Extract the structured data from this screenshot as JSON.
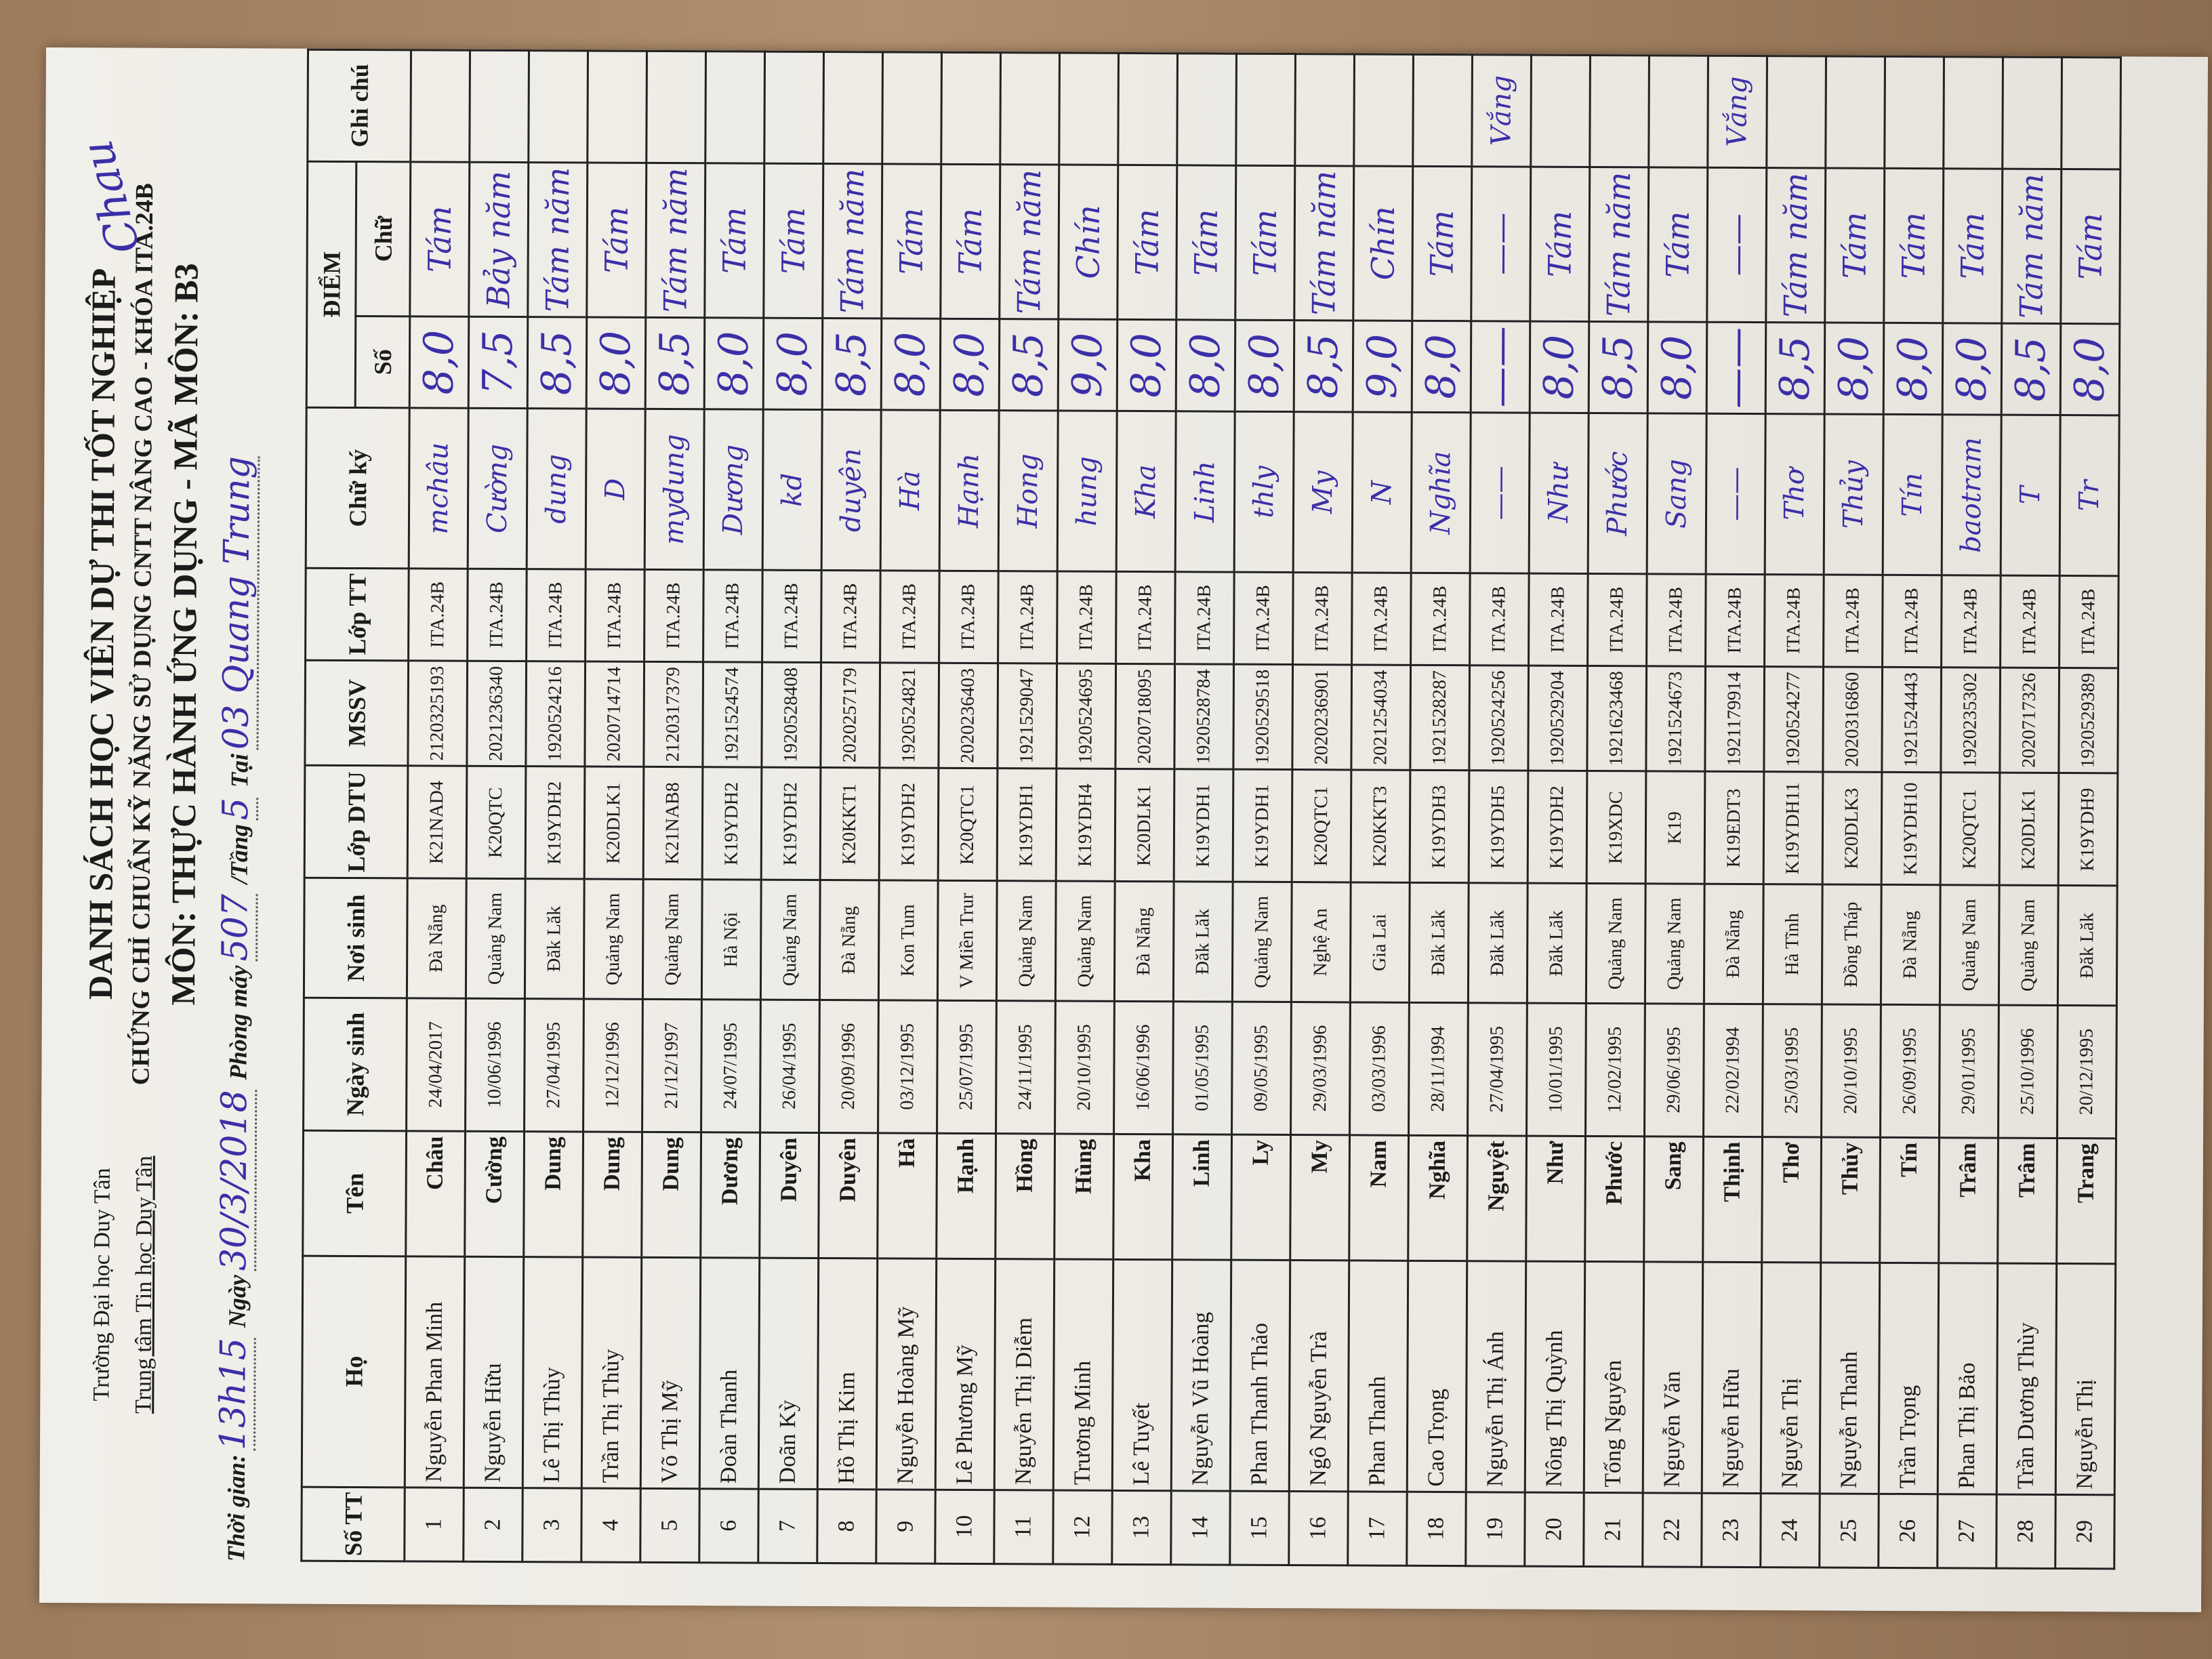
{
  "header": {
    "university": "Trường Đại học Duy Tân",
    "center": "Trung tâm Tin học Duy Tân",
    "title": "DANH SÁCH HỌC VIÊN DỰ THI TỐT NGHIỆP",
    "subtitle": "CHỨNG CHỈ CHUẨN KỸ NĂNG SỬ DỤNG CNTT NÂNG CAO - KHÓA ITA.24B",
    "subject": "MÔN: THỰC HÀNH ỨNG DỤNG - MÃ MÔN: B3",
    "time_label": "Thời gian:",
    "time_value": "13h15",
    "date_label": "Ngày",
    "date_value": "30/3/2018",
    "room_label": "Phòng máy",
    "room_value": "507",
    "floor_label": "/Tầng",
    "floor_value": "5",
    "at_label": "Tại",
    "at_value": "03 Quang Trung",
    "corner_signature": "Chau"
  },
  "columns": {
    "stt": "Số TT",
    "ho": "Họ",
    "ten": "Tên",
    "ngay_sinh": "Ngày sinh",
    "noi_sinh": "Nơi sinh",
    "lop_dtu": "Lớp DTU",
    "mssv": "MSSV",
    "lop_tt": "Lớp TT",
    "chu_ky": "Chữ ký",
    "diem": "ĐIỂM",
    "so": "Số",
    "chu": "Chữ",
    "ghi_chu": "Ghi chú"
  },
  "rows": [
    {
      "stt": "1",
      "ho": "Nguyễn Phan Minh",
      "ten": "Châu",
      "ngay_sinh": "24/04/2017",
      "noi_sinh": "Đà Nẵng",
      "lop_dtu": "K21NAD4",
      "mssv": "2120325193",
      "lop_tt": "ITA.24B",
      "chu_ky": "mchâu",
      "so": "8,0",
      "chu": "Tám",
      "ghi_chu": ""
    },
    {
      "stt": "2",
      "ho": "Nguyễn Hữu",
      "ten": "Cường",
      "ngay_sinh": "10/06/1996",
      "noi_sinh": "Quảng Nam",
      "lop_dtu": "K20QTC",
      "mssv": "2021236340",
      "lop_tt": "ITA.24B",
      "chu_ky": "Cường",
      "so": "7,5",
      "chu": "Bảy năm",
      "ghi_chu": ""
    },
    {
      "stt": "3",
      "ho": "Lê Thị Thùy",
      "ten": "Dung",
      "ngay_sinh": "27/04/1995",
      "noi_sinh": "Đăk Lăk",
      "lop_dtu": "K19YDH2",
      "mssv": "1920524216",
      "lop_tt": "ITA.24B",
      "chu_ky": "dung",
      "so": "8,5",
      "chu": "Tám năm",
      "ghi_chu": ""
    },
    {
      "stt": "4",
      "ho": "Trần Thị Thùy",
      "ten": "Dung",
      "ngay_sinh": "12/12/1996",
      "noi_sinh": "Quảng Nam",
      "lop_dtu": "K20DLK1",
      "mssv": "2020714714",
      "lop_tt": "ITA.24B",
      "chu_ky": "D",
      "so": "8,0",
      "chu": "Tám",
      "ghi_chu": ""
    },
    {
      "stt": "5",
      "ho": "Võ Thị Mỹ",
      "ten": "Dung",
      "ngay_sinh": "21/12/1997",
      "noi_sinh": "Quảng Nam",
      "lop_dtu": "K21NAB8",
      "mssv": "2120317379",
      "lop_tt": "ITA.24B",
      "chu_ky": "mydung",
      "so": "8,5",
      "chu": "Tám năm",
      "ghi_chu": ""
    },
    {
      "stt": "6",
      "ho": "Đoàn Thanh",
      "ten": "Dương",
      "ngay_sinh": "24/07/1995",
      "noi_sinh": "Hà Nội",
      "lop_dtu": "K19YDH2",
      "mssv": "1921524574",
      "lop_tt": "ITA.24B",
      "chu_ky": "Dương",
      "so": "8,0",
      "chu": "Tám",
      "ghi_chu": ""
    },
    {
      "stt": "7",
      "ho": "Doãn Kỳ",
      "ten": "Duyên",
      "ngay_sinh": "26/04/1995",
      "noi_sinh": "Quảng Nam",
      "lop_dtu": "K19YDH2",
      "mssv": "1920528408",
      "lop_tt": "ITA.24B",
      "chu_ky": "kd",
      "so": "8,0",
      "chu": "Tám",
      "ghi_chu": ""
    },
    {
      "stt": "8",
      "ho": "Hồ Thị Kim",
      "ten": "Duyên",
      "ngay_sinh": "20/09/1996",
      "noi_sinh": "Đà Nẵng",
      "lop_dtu": "K20KKT1",
      "mssv": "2020257179",
      "lop_tt": "ITA.24B",
      "chu_ky": "duyên",
      "so": "8,5",
      "chu": "Tám năm",
      "ghi_chu": ""
    },
    {
      "stt": "9",
      "ho": "Nguyễn Hoàng Mỹ",
      "ten": "Hà",
      "ngay_sinh": "03/12/1995",
      "noi_sinh": "Kon Tum",
      "lop_dtu": "K19YDH2",
      "mssv": "1920524821",
      "lop_tt": "ITA.24B",
      "chu_ky": "Hà",
      "so": "8,0",
      "chu": "Tám",
      "ghi_chu": ""
    },
    {
      "stt": "10",
      "ho": "Lê Phương Mỹ",
      "ten": "Hạnh",
      "ngay_sinh": "25/07/1995",
      "noi_sinh": "V Miền Trur",
      "lop_dtu": "K20QTC1",
      "mssv": "2020236403",
      "lop_tt": "ITA.24B",
      "chu_ky": "Hạnh",
      "so": "8,0",
      "chu": "Tám",
      "ghi_chu": ""
    },
    {
      "stt": "11",
      "ho": "Nguyễn Thị Diễm",
      "ten": "Hồng",
      "ngay_sinh": "24/11/1995",
      "noi_sinh": "Quảng Nam",
      "lop_dtu": "K19YDH1",
      "mssv": "1921529047",
      "lop_tt": "ITA.24B",
      "chu_ky": "Hong",
      "so": "8,5",
      "chu": "Tám năm",
      "ghi_chu": ""
    },
    {
      "stt": "12",
      "ho": "Trương Minh",
      "ten": "Hùng",
      "ngay_sinh": "20/10/1995",
      "noi_sinh": "Quảng Nam",
      "lop_dtu": "K19YDH4",
      "mssv": "1920524695",
      "lop_tt": "ITA.24B",
      "chu_ky": "hung",
      "so": "9,0",
      "chu": "Chín",
      "ghi_chu": ""
    },
    {
      "stt": "13",
      "ho": "Lê Tuyết",
      "ten": "Kha",
      "ngay_sinh": "16/06/1996",
      "noi_sinh": "Đà Nẵng",
      "lop_dtu": "K20DLK1",
      "mssv": "2020718095",
      "lop_tt": "ITA.24B",
      "chu_ky": "Kha",
      "so": "8,0",
      "chu": "Tám",
      "ghi_chu": ""
    },
    {
      "stt": "14",
      "ho": "Nguyễn Vũ Hoàng",
      "ten": "Linh",
      "ngay_sinh": "01/05/1995",
      "noi_sinh": "Đăk Lăk",
      "lop_dtu": "K19YDH1",
      "mssv": "1920528784",
      "lop_tt": "ITA.24B",
      "chu_ky": "Linh",
      "so": "8,0",
      "chu": "Tám",
      "ghi_chu": ""
    },
    {
      "stt": "15",
      "ho": "Phan Thanh Thảo",
      "ten": "Ly",
      "ngay_sinh": "09/05/1995",
      "noi_sinh": "Quảng Nam",
      "lop_dtu": "K19YDH1",
      "mssv": "1920529518",
      "lop_tt": "ITA.24B",
      "chu_ky": "thly",
      "so": "8,0",
      "chu": "Tám",
      "ghi_chu": ""
    },
    {
      "stt": "16",
      "ho": "Ngô Nguyễn Trà",
      "ten": "My",
      "ngay_sinh": "29/03/1996",
      "noi_sinh": "Nghệ An",
      "lop_dtu": "K20QTC1",
      "mssv": "2020236901",
      "lop_tt": "ITA.24B",
      "chu_ky": "My",
      "so": "8,5",
      "chu": "Tám năm",
      "ghi_chu": ""
    },
    {
      "stt": "17",
      "ho": "Phan Thanh",
      "ten": "Nam",
      "ngay_sinh": "03/03/1996",
      "noi_sinh": "Gia Lai",
      "lop_dtu": "K20KKT3",
      "mssv": "2021254034",
      "lop_tt": "ITA.24B",
      "chu_ky": "N",
      "so": "9,0",
      "chu": "Chín",
      "ghi_chu": ""
    },
    {
      "stt": "18",
      "ho": "Cao Trọng",
      "ten": "Nghĩa",
      "ngay_sinh": "28/11/1994",
      "noi_sinh": "Đăk Lăk",
      "lop_dtu": "K19YDH3",
      "mssv": "1921528287",
      "lop_tt": "ITA.24B",
      "chu_ky": "Nghĩa",
      "so": "8,0",
      "chu": "Tám",
      "ghi_chu": ""
    },
    {
      "stt": "19",
      "ho": "Nguyễn Thị Ánh",
      "ten": "Nguyệt",
      "ngay_sinh": "27/04/1995",
      "noi_sinh": "Đăk Lăk",
      "lop_dtu": "K19YDH5",
      "mssv": "1920524256",
      "lop_tt": "ITA.24B",
      "chu_ky": "——",
      "so": "——",
      "chu": "——",
      "ghi_chu": "Vắng"
    },
    {
      "stt": "20",
      "ho": "Nông Thị Quỳnh",
      "ten": "Như",
      "ngay_sinh": "10/01/1995",
      "noi_sinh": "Đăk Lăk",
      "lop_dtu": "K19YDH2",
      "mssv": "1920529204",
      "lop_tt": "ITA.24B",
      "chu_ky": "Như",
      "so": "8,0",
      "chu": "Tám",
      "ghi_chu": ""
    },
    {
      "stt": "21",
      "ho": "Tống Nguyên",
      "ten": "Phước",
      "ngay_sinh": "12/02/1995",
      "noi_sinh": "Quảng Nam",
      "lop_dtu": "K19XDC",
      "mssv": "1921623468",
      "lop_tt": "ITA.24B",
      "chu_ky": "Phước",
      "so": "8,5",
      "chu": "Tám năm",
      "ghi_chu": ""
    },
    {
      "stt": "22",
      "ho": "Nguyễn Văn",
      "ten": "Sang",
      "ngay_sinh": "29/06/1995",
      "noi_sinh": "Quảng Nam",
      "lop_dtu": "K19",
      "mssv": "1921524673",
      "lop_tt": "ITA.24B",
      "chu_ky": "Sang",
      "so": "8,0",
      "chu": "Tám",
      "ghi_chu": ""
    },
    {
      "stt": "23",
      "ho": "Nguyễn Hữu",
      "ten": "Thịnh",
      "ngay_sinh": "22/02/1994",
      "noi_sinh": "Đà Nẵng",
      "lop_dtu": "K19EDT3",
      "mssv": "1921179914",
      "lop_tt": "ITA.24B",
      "chu_ky": "——",
      "so": "——",
      "chu": "——",
      "ghi_chu": "Vắng"
    },
    {
      "stt": "24",
      "ho": "Nguyễn Thị",
      "ten": "Thơ",
      "ngay_sinh": "25/03/1995",
      "noi_sinh": "Hà Tĩnh",
      "lop_dtu": "K19YDH11",
      "mssv": "1920524277",
      "lop_tt": "ITA.24B",
      "chu_ky": "Thơ",
      "so": "8,5",
      "chu": "Tám năm",
      "ghi_chu": ""
    },
    {
      "stt": "25",
      "ho": "Nguyễn Thanh",
      "ten": "Thủy",
      "ngay_sinh": "20/10/1995",
      "noi_sinh": "Đồng Tháp",
      "lop_dtu": "K20DLK3",
      "mssv": "2020316860",
      "lop_tt": "ITA.24B",
      "chu_ky": "Thủy",
      "so": "8,0",
      "chu": "Tám",
      "ghi_chu": ""
    },
    {
      "stt": "26",
      "ho": "Trần Trọng",
      "ten": "Tín",
      "ngay_sinh": "26/09/1995",
      "noi_sinh": "Đà Nẵng",
      "lop_dtu": "K19YDH10",
      "mssv": "1921524443",
      "lop_tt": "ITA.24B",
      "chu_ky": "Tín",
      "so": "8,0",
      "chu": "Tám",
      "ghi_chu": ""
    },
    {
      "stt": "27",
      "ho": "Phan Thị Bảo",
      "ten": "Trâm",
      "ngay_sinh": "29/01/1995",
      "noi_sinh": "Quảng Nam",
      "lop_dtu": "K20QTC1",
      "mssv": "1920235302",
      "lop_tt": "ITA.24B",
      "chu_ky": "baotram",
      "so": "8,0",
      "chu": "Tám",
      "ghi_chu": ""
    },
    {
      "stt": "28",
      "ho": "Trần Dương Thùy",
      "ten": "Trâm",
      "ngay_sinh": "25/10/1996",
      "noi_sinh": "Quảng Nam",
      "lop_dtu": "K20DLK1",
      "mssv": "2020717326",
      "lop_tt": "ITA.24B",
      "chu_ky": "T",
      "so": "8,5",
      "chu": "Tám năm",
      "ghi_chu": ""
    },
    {
      "stt": "29",
      "ho": "Nguyễn Thị",
      "ten": "Trang",
      "ngay_sinh": "20/12/1995",
      "noi_sinh": "Đăk Lăk",
      "lop_dtu": "K19YDH9",
      "mssv": "1920529389",
      "lop_tt": "ITA.24B",
      "chu_ky": "Tr",
      "so": "8,0",
      "chu": "Tám",
      "ghi_chu": ""
    }
  ],
  "colors": {
    "ink": "#3b2fa8",
    "paper": "#eeece6",
    "print": "#1b1b1b"
  }
}
